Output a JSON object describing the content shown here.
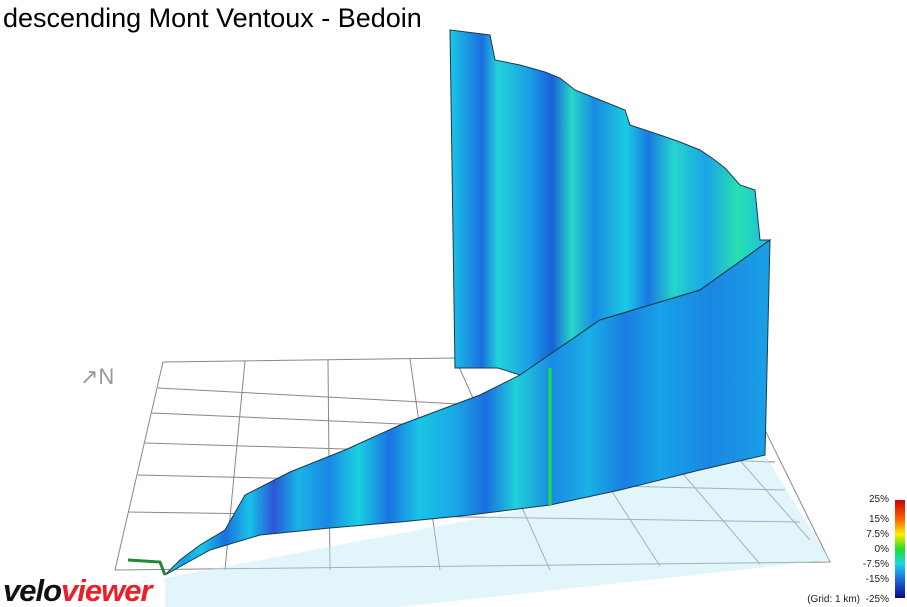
{
  "title": "descending Mont Ventoux - Bedoin",
  "compass": "↗N",
  "logo": {
    "first": "velo",
    "second": "viewer"
  },
  "legend": {
    "labels": [
      "25%",
      "15%",
      "7.5%",
      "0%",
      "-7.5%",
      "-15%",
      "-25%"
    ],
    "grid_note": "(Grid: 1 km)"
  }
}
